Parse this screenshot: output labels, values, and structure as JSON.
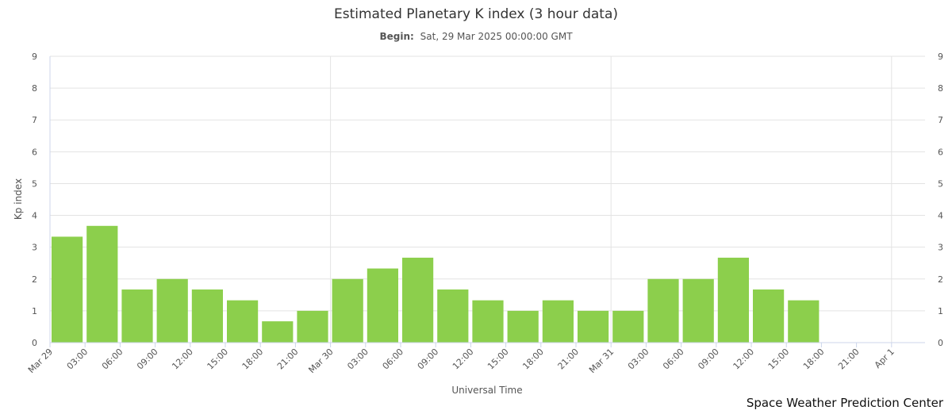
{
  "subtitle": {
    "label": "Begin:",
    "value": "Sat, 29 Mar 2025 00:00:00 GMT"
  },
  "credit": "Space Weather Prediction Center",
  "colors": {
    "bar": "#8ccf4c",
    "grid": "#e3e3e3",
    "axis_line": "#ccd6eb"
  },
  "chart_data": {
    "type": "bar",
    "title": "Estimated Planetary K index (3 hour data)",
    "xlabel": "Universal Time",
    "ylabel": "Kp index",
    "ylim": [
      0,
      9
    ],
    "y_ticks": [
      "0",
      "1",
      "2",
      "3",
      "4",
      "5",
      "6",
      "7",
      "8",
      "9"
    ],
    "x_ticks": [
      "Mar 29",
      "03:00",
      "06:00",
      "09:00",
      "12:00",
      "15:00",
      "18:00",
      "21:00",
      "Mar 30",
      "03:00",
      "06:00",
      "09:00",
      "12:00",
      "15:00",
      "18:00",
      "21:00",
      "Mar 31",
      "03:00",
      "06:00",
      "09:00",
      "12:00",
      "15:00",
      "18:00",
      "21:00",
      "Apr 1"
    ],
    "grid": true,
    "legend": "none",
    "series": [
      {
        "values": [
          3.33,
          3.67,
          1.67,
          2.0,
          1.67,
          1.33,
          0.67,
          1.0,
          2.0,
          2.33,
          2.67,
          1.67,
          1.33,
          1.0,
          1.33,
          1.0,
          1.0,
          2.0,
          2.0,
          2.67,
          1.67,
          1.33
        ]
      }
    ]
  }
}
